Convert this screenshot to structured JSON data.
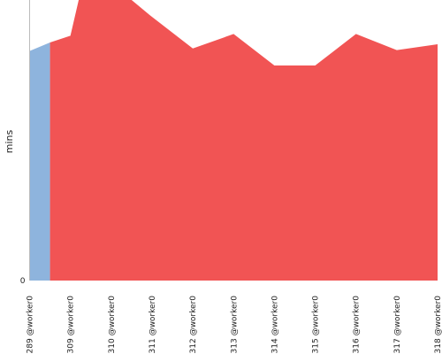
{
  "chart_data": {
    "type": "area",
    "ylabel": "mins",
    "yticks": [
      {
        "value": 0,
        "label": "0"
      }
    ],
    "ylim": [
      0,
      33
    ],
    "x_labels": [
      "#289 @worker0",
      "#309 @worker0",
      "#310 @worker0",
      "#311 @worker0",
      "#312 @worker0",
      "#313 @worker0",
      "#314 @worker0",
      "#315 @worker0",
      "#316 @worker0",
      "#317 @worker0",
      "#318 @worker0"
    ],
    "segments": [
      {
        "color": "#8eb4dd",
        "points": [
          [
            0,
            27
          ],
          [
            0.5,
            28
          ]
        ]
      },
      {
        "color": "#f15454",
        "points": [
          [
            0.5,
            28
          ],
          [
            1,
            28.8
          ],
          [
            1.3,
            35
          ],
          [
            2,
            35
          ],
          [
            2.95,
            31.2
          ],
          [
            4,
            27.3
          ],
          [
            5,
            29
          ],
          [
            6,
            25.3
          ],
          [
            7,
            25.3
          ],
          [
            8,
            29
          ],
          [
            9,
            27.1
          ],
          [
            10,
            27.8
          ]
        ]
      }
    ]
  }
}
